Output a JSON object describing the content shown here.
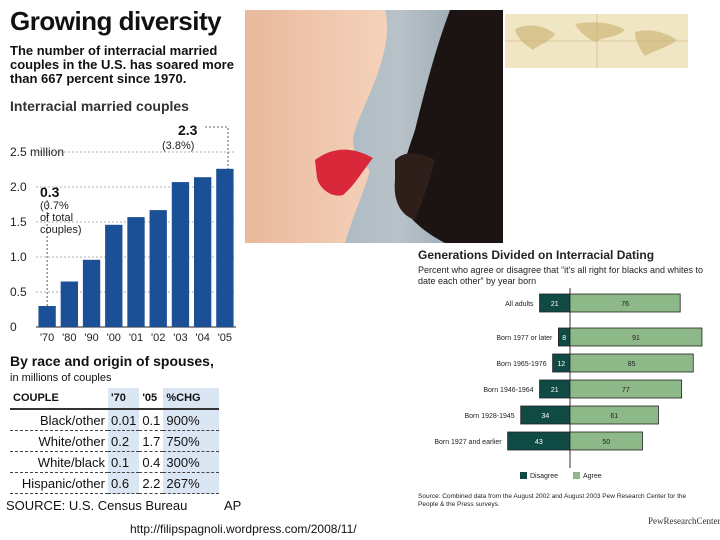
{
  "left": {
    "title": "Growing diversity",
    "subtitle": "The number of interracial married couples in the U.S. has soared more than 667 percent since 1970.",
    "chart_title": "Interracial married couples",
    "table_title": "By race and origin of spouses,",
    "table_subtitle": "in millions of couples",
    "table_headers": [
      "COUPLE",
      "'70",
      "'05",
      "%CHG"
    ],
    "table_rows": [
      [
        "Black/other",
        "0.01",
        "0.1",
        "900%"
      ],
      [
        "White/other",
        "0.2",
        "1.7",
        "750%"
      ],
      [
        "White/black",
        "0.1",
        "0.4",
        "300%"
      ],
      [
        "Hispanic/other",
        "0.6",
        "2.2",
        "267%"
      ]
    ],
    "source": "SOURCE: U.S. Census Bureau",
    "credit": "AP"
  },
  "right": {
    "title": "Generations Divided on Interracial Dating",
    "subtitle": "Percent who agree or disagree that “it’s all right for blacks and whites to date each other” by year born",
    "source": "Source: Combined data from the August 2002 and August 2003 Pew Research Center for the People & the Press surveys.",
    "logo": "PewResearchCenter"
  },
  "url": "http://filipspagnoli.wordpress.com/2008/11/",
  "colors": {
    "bar": "#ffffff",
    "disagree": "#0f4a45",
    "agree": "#8db887"
  },
  "chart_data": [
    {
      "type": "bar",
      "title": "Interracial married couples",
      "categories": [
        "'70",
        "'80",
        "'90",
        "'00",
        "'01",
        "'02",
        "'03",
        "'04",
        "'05"
      ],
      "values": [
        0.3,
        0.65,
        0.96,
        1.46,
        1.57,
        1.67,
        2.07,
        2.14,
        2.26
      ],
      "ylim": [
        0,
        2.5
      ],
      "yticks": [
        "0",
        "0.5",
        "1.0",
        "1.5",
        "2.0",
        "2.5 million"
      ],
      "annotations": [
        {
          "label": "0.3",
          "detail": "(0.7% of total couples)"
        },
        {
          "label": "2.3",
          "detail": "(3.8%)"
        }
      ]
    },
    {
      "type": "bar",
      "title": "Generations Divided on Interracial Dating",
      "series_names": [
        "Disagree",
        "Agree"
      ],
      "rows": [
        {
          "label": "All adults",
          "disagree": 21,
          "agree": 76
        },
        {
          "label": "Born 1977 or later",
          "disagree": 8,
          "agree": 91
        },
        {
          "label": "Born 1965-1976",
          "disagree": 12,
          "agree": 85
        },
        {
          "label": "Born 1946-1964",
          "disagree": 21,
          "agree": 77
        },
        {
          "label": "Born 1928-1945",
          "disagree": 34,
          "agree": 61
        },
        {
          "label": "Born 1927 and earlier",
          "disagree": 43,
          "agree": 50
        }
      ]
    }
  ]
}
